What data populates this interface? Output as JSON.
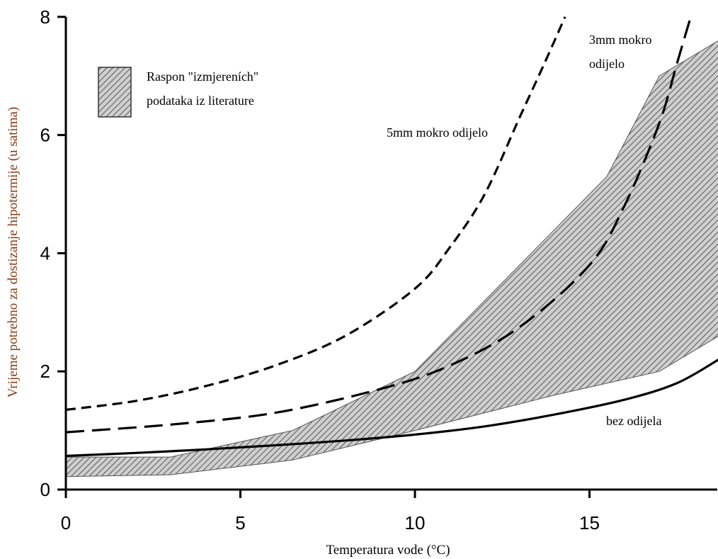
{
  "chart_data": {
    "type": "line",
    "xlabel": "Temperatura vode (°C)",
    "ylabel": "Vrijeme potrebno za dostizanje hipotermije (u satima)",
    "xlim": [
      0,
      18.7
    ],
    "ylim": [
      0,
      8
    ],
    "xticks": [
      0,
      5,
      10,
      15
    ],
    "yticks": [
      0,
      2,
      4,
      6,
      8
    ],
    "grid": false,
    "legend": {
      "position": "top-left",
      "label_lines": [
        "Raspon \"izmjereních\"",
        "podataka iz literature"
      ]
    },
    "band": {
      "name_lines": [
        "Raspon \"izmjereních\"",
        "podataka iz literature"
      ],
      "upper": [
        [
          0,
          0.55
        ],
        [
          3,
          0.55
        ],
        [
          6.5,
          1.0
        ],
        [
          10,
          2.0
        ],
        [
          13,
          3.8
        ],
        [
          15.5,
          5.3
        ],
        [
          17,
          7.0
        ],
        [
          18.7,
          7.6
        ]
      ],
      "lower": [
        [
          0,
          0.22
        ],
        [
          3,
          0.25
        ],
        [
          6.5,
          0.5
        ],
        [
          10,
          1.0
        ],
        [
          14,
          1.6
        ],
        [
          17,
          2.0
        ],
        [
          18.7,
          2.6
        ]
      ]
    },
    "series": [
      {
        "name": "5mm mokro odijelo",
        "style": "dashed",
        "points": [
          [
            0,
            1.35
          ],
          [
            2,
            1.5
          ],
          [
            4,
            1.75
          ],
          [
            6,
            2.1
          ],
          [
            8,
            2.6
          ],
          [
            10,
            3.4
          ],
          [
            11,
            4.1
          ],
          [
            12,
            5.0
          ],
          [
            13,
            6.3
          ],
          [
            13.7,
            7.2
          ],
          [
            14.3,
            8.0
          ]
        ]
      },
      {
        "name": "3mm mokro odijelo",
        "style": "longdash",
        "points": [
          [
            0,
            0.97
          ],
          [
            3,
            1.1
          ],
          [
            6,
            1.3
          ],
          [
            9,
            1.7
          ],
          [
            11,
            2.1
          ],
          [
            13,
            2.75
          ],
          [
            15,
            3.8
          ],
          [
            16,
            4.8
          ],
          [
            17,
            6.2
          ],
          [
            17.5,
            7.2
          ],
          [
            17.9,
            8.0
          ]
        ]
      },
      {
        "name": "bez odijela",
        "style": "solid",
        "points": [
          [
            0,
            0.57
          ],
          [
            2,
            0.62
          ],
          [
            4,
            0.68
          ],
          [
            6,
            0.75
          ],
          [
            8,
            0.83
          ],
          [
            10,
            0.93
          ],
          [
            12,
            1.07
          ],
          [
            14,
            1.27
          ],
          [
            16,
            1.52
          ],
          [
            17.5,
            1.8
          ],
          [
            18.7,
            2.2
          ]
        ]
      }
    ],
    "annotations": {
      "five_mm": "5mm mokro odijelo",
      "three_mm_line1": "3mm mokro",
      "three_mm_line2": "odijelo",
      "no_suit": "bez odijela"
    }
  }
}
